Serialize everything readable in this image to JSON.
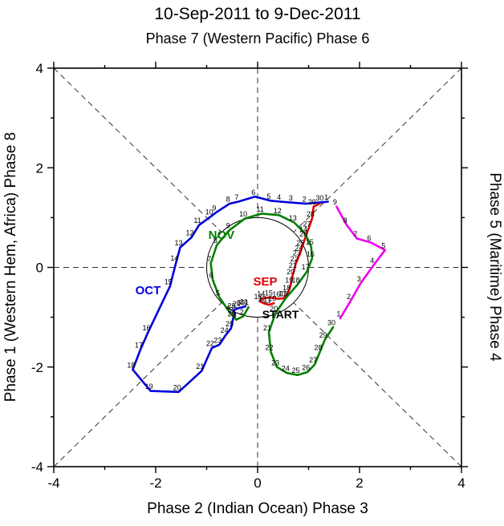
{
  "title": "10-Sep-2011 to 9-Dec-2011",
  "subtitle": "Phase 7 (Western Pacific) Phase 6",
  "axes": {
    "bottom_label": "Phase 2 (Indian Ocean) Phase 3",
    "left_label": "Phase 1 (Western Hem, Africa) Phase 8",
    "right_label": "Phase 5 (Maritime) Phase 4",
    "xlim": [
      -4,
      4
    ],
    "ylim": [
      -4,
      4
    ],
    "x_ticks": [
      -4,
      -2,
      0,
      2,
      4
    ],
    "y_ticks": [
      -4,
      -2,
      0,
      2,
      4
    ],
    "minor_ticks": [
      -3,
      -1,
      1,
      3
    ]
  },
  "chart_data": {
    "type": "line",
    "description": "MJO (RMM) phase-space trajectory, daily points labeled by day of month",
    "xlabel": "Phase 2 (Indian Ocean) Phase 3",
    "ylabel": "Phase 1 (Western Hem, Africa) Phase 8",
    "xlim": [
      -4,
      4
    ],
    "ylim": [
      -4,
      4
    ],
    "unit_circle_radius": 1,
    "series": [
      {
        "name": "SEP",
        "color": "#e00000",
        "label": {
          "text": "SEP",
          "x": 0.15,
          "y": -0.36
        },
        "points": [
          [
            10,
            0.32,
            -0.72
          ],
          [
            11,
            0.22,
            -0.75
          ],
          [
            12,
            0.12,
            -0.72
          ],
          [
            13,
            0.04,
            -0.68
          ],
          [
            14,
            0.1,
            -0.62
          ],
          [
            15,
            0.25,
            -0.6
          ],
          [
            16,
            0.4,
            -0.63
          ],
          [
            17,
            0.52,
            -0.62
          ],
          [
            18,
            0.6,
            -0.5
          ],
          [
            19,
            0.65,
            -0.35
          ],
          [
            20,
            0.68,
            -0.18
          ],
          [
            21,
            0.72,
            -0.05
          ],
          [
            22,
            0.75,
            0.08
          ],
          [
            23,
            0.8,
            0.2
          ],
          [
            24,
            0.84,
            0.3
          ],
          [
            25,
            0.87,
            0.4
          ],
          [
            26,
            0.93,
            0.58
          ],
          [
            27,
            1.0,
            0.78
          ],
          [
            28,
            1.07,
            0.98
          ],
          [
            29,
            1.1,
            1.22
          ],
          [
            30,
            1.25,
            1.3
          ]
        ]
      },
      {
        "name": "OCT",
        "color": "#0000dd",
        "label": {
          "text": "OCT",
          "x": -2.15,
          "y": -0.54
        },
        "points": [
          [
            1,
            1.38,
            1.32
          ],
          [
            2,
            0.95,
            1.28
          ],
          [
            3,
            0.68,
            1.3
          ],
          [
            4,
            0.45,
            1.32
          ],
          [
            5,
            0.25,
            1.34
          ],
          [
            6,
            -0.05,
            1.42
          ],
          [
            7,
            -0.38,
            1.32
          ],
          [
            8,
            -0.55,
            1.28
          ],
          [
            9,
            -0.82,
            1.1
          ],
          [
            10,
            -0.92,
            1.02
          ],
          [
            11,
            -1.15,
            0.85
          ],
          [
            12,
            -1.3,
            0.6
          ],
          [
            13,
            -1.52,
            0.4
          ],
          [
            14,
            -1.6,
            0.1
          ],
          [
            15,
            -1.72,
            -0.38
          ],
          [
            16,
            -2.15,
            -1.3
          ],
          [
            17,
            -2.3,
            -1.65
          ],
          [
            18,
            -2.45,
            -2.05
          ],
          [
            19,
            -2.1,
            -2.48
          ],
          [
            20,
            -1.55,
            -2.5
          ],
          [
            21,
            -1.1,
            -2.08
          ],
          [
            22,
            -0.9,
            -1.62
          ],
          [
            23,
            -0.75,
            -1.55
          ],
          [
            24,
            -0.62,
            -1.35
          ],
          [
            25,
            -0.52,
            -1.22
          ],
          [
            26,
            -0.48,
            -1.02
          ],
          [
            27,
            -0.45,
            -0.94
          ],
          [
            28,
            -0.48,
            -0.86
          ],
          [
            29,
            -0.38,
            -0.82
          ],
          [
            30,
            -0.3,
            -0.8
          ],
          [
            31,
            -0.24,
            -0.78
          ]
        ]
      },
      {
        "name": "NOV",
        "color": "#008000",
        "label": {
          "text": "NOV",
          "x": -0.71,
          "y": 0.57
        },
        "points": [
          [
            1,
            -0.18,
            -0.8
          ],
          [
            2,
            -0.28,
            -0.98
          ],
          [
            3,
            -0.42,
            -1.05
          ],
          [
            4,
            -0.55,
            -0.9
          ],
          [
            5,
            -0.75,
            -0.6
          ],
          [
            6,
            -0.88,
            -0.25
          ],
          [
            7,
            -0.92,
            0.08
          ],
          [
            8,
            -0.8,
            0.45
          ],
          [
            9,
            -0.55,
            0.75
          ],
          [
            10,
            -0.25,
            0.98
          ],
          [
            11,
            0.08,
            1.08
          ],
          [
            12,
            0.42,
            1.05
          ],
          [
            13,
            0.72,
            0.9
          ],
          [
            14,
            0.93,
            0.68
          ],
          [
            15,
            1.05,
            0.42
          ],
          [
            16,
            1.07,
            0.18
          ],
          [
            17,
            0.97,
            -0.08
          ],
          [
            18,
            0.78,
            -0.35
          ],
          [
            19,
            0.55,
            -0.62
          ],
          [
            20,
            0.35,
            -0.92
          ],
          [
            21,
            0.22,
            -1.3
          ],
          [
            22,
            0.26,
            -1.7
          ],
          [
            23,
            0.38,
            -2.0
          ],
          [
            24,
            0.58,
            -2.12
          ],
          [
            25,
            0.78,
            -2.16
          ],
          [
            26,
            0.98,
            -2.1
          ],
          [
            27,
            1.12,
            -1.95
          ],
          [
            28,
            1.22,
            -1.7
          ],
          [
            29,
            1.32,
            -1.45
          ],
          [
            30,
            1.48,
            -1.2
          ]
        ]
      },
      {
        "name": "DEC",
        "color": "#ee00ee",
        "label": null,
        "points": [
          [
            1,
            1.62,
            -1.02
          ],
          [
            2,
            1.82,
            -0.68
          ],
          [
            3,
            2.02,
            -0.32
          ],
          [
            4,
            2.28,
            0.05
          ],
          [
            5,
            2.5,
            0.35
          ],
          [
            6,
            2.22,
            0.5
          ],
          [
            7,
            1.95,
            0.58
          ],
          [
            8,
            1.75,
            0.85
          ],
          [
            9,
            1.55,
            1.22
          ]
        ]
      }
    ],
    "annotations": [
      {
        "text": "START",
        "color": "#000000",
        "x": 0.45,
        "y": -1.02
      }
    ]
  }
}
